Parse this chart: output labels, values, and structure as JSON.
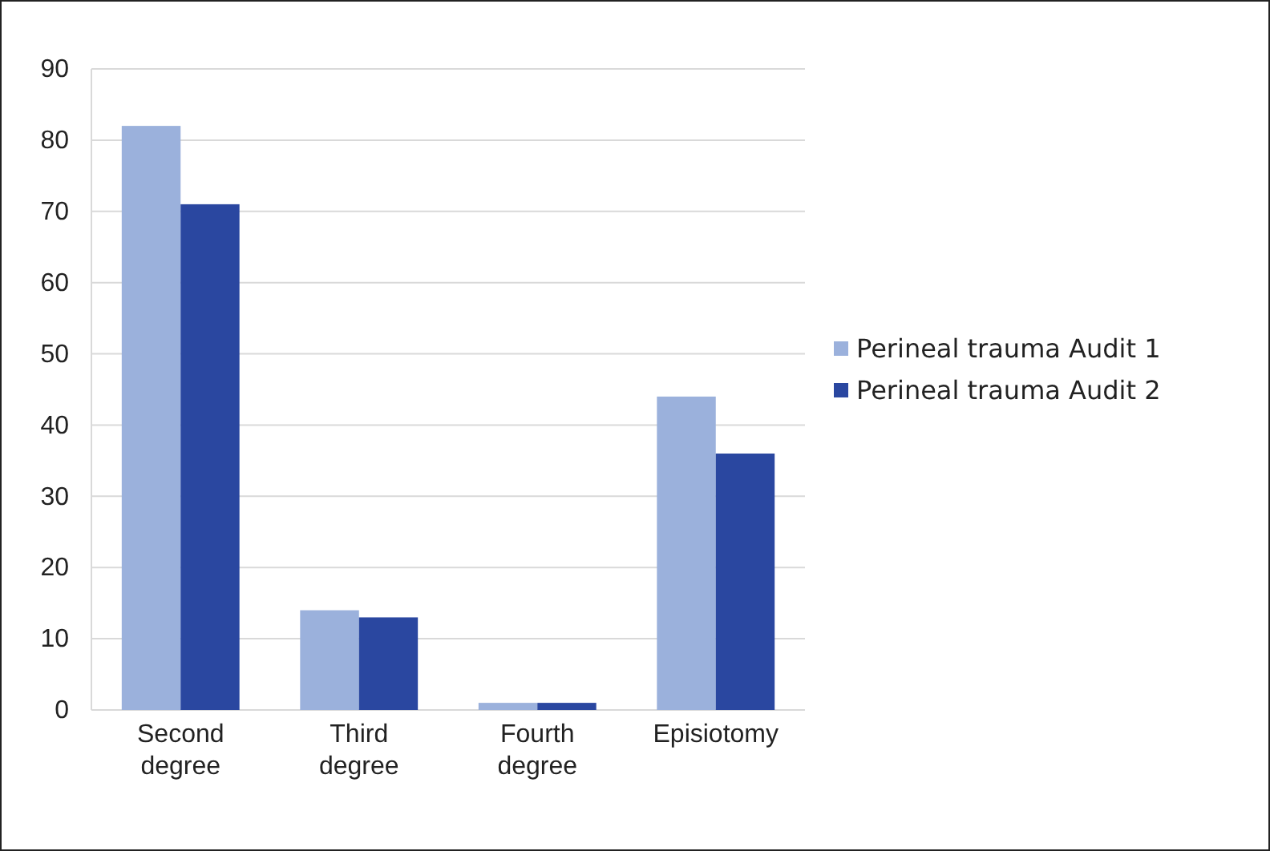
{
  "chart_data": {
    "type": "bar",
    "categories": [
      "Second degree",
      "Third degree",
      "Fourth degree",
      "Episiotomy"
    ],
    "series": [
      {
        "name": "Perineal trauma Audit 1",
        "color": "#9bb1dc",
        "values": [
          82,
          14,
          1,
          44
        ]
      },
      {
        "name": "Perineal trauma Audit 2",
        "color": "#2a47a0",
        "values": [
          71,
          13,
          1,
          36
        ]
      }
    ],
    "ylim": [
      0,
      90
    ],
    "yticks": [
      0,
      10,
      20,
      30,
      40,
      50,
      60,
      70,
      80,
      90
    ],
    "grid": "y",
    "legend": "right"
  }
}
